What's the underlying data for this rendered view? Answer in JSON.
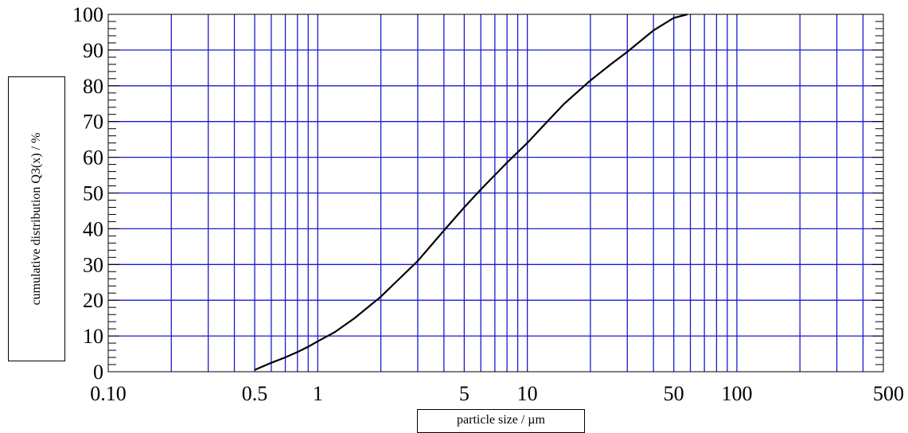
{
  "chart_data": {
    "type": "line",
    "xscale": "log",
    "xlim": [
      0.1,
      500
    ],
    "ylim": [
      0,
      100
    ],
    "xlabel": "particle size / µm",
    "ylabel": "cumulative distribution Q3(x) / %",
    "xtick_labels": [
      {
        "value": 0.1,
        "label": "0.10"
      },
      {
        "value": 0.5,
        "label": "0.5"
      },
      {
        "value": 1,
        "label": "1"
      },
      {
        "value": 5,
        "label": "5"
      },
      {
        "value": 10,
        "label": "10"
      },
      {
        "value": 50,
        "label": "50"
      },
      {
        "value": 100,
        "label": "100"
      },
      {
        "value": 500,
        "label": "500"
      }
    ],
    "ytick_labels": [
      "0",
      "10",
      "20",
      "30",
      "40",
      "50",
      "60",
      "70",
      "80",
      "90",
      "100"
    ],
    "grid": true,
    "grid_color": "#1a1acc",
    "line_color": "#000000",
    "series": [
      {
        "x": [
          0.5,
          0.6,
          0.7,
          0.8,
          0.9,
          1.0,
          1.2,
          1.5,
          2.0,
          2.5,
          3.0,
          4.0,
          5.0,
          6.0,
          7.0,
          8.0,
          10.0,
          12.0,
          15.0,
          20.0,
          25.0,
          30.0,
          40.0,
          50.0,
          58.0
        ],
        "y": [
          0.5,
          2.5,
          4.0,
          5.5,
          7.0,
          8.5,
          11.0,
          15.0,
          21.0,
          26.5,
          31.0,
          39.5,
          46.0,
          51.0,
          55.0,
          58.5,
          64.0,
          69.0,
          75.0,
          81.5,
          86.0,
          89.5,
          95.5,
          99.0,
          100.0
        ]
      }
    ]
  }
}
